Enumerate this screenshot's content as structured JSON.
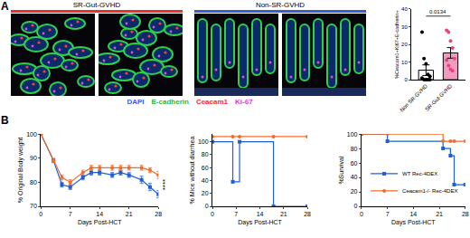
{
  "figure": {
    "panel_labels": [
      "A",
      "B"
    ],
    "images": [
      {
        "title": "SR-Gut-GVHD",
        "color": "#e8312f"
      },
      {
        "title": "Non-SR-GVHD",
        "color": "#3a5fcd"
      }
    ],
    "stain_legend": [
      {
        "text": "DAPI",
        "color": "#3b5bff"
      },
      {
        "text": "E-cadherin",
        "color": "#1fb83a"
      },
      {
        "text": "Ceacam1",
        "color": "#ff2a2a"
      },
      {
        "text": "Ki-67",
        "color": "#d83ad8"
      }
    ]
  },
  "chart_data": [
    {
      "type": "bar",
      "categories": [
        "Non SR-GVHD",
        "SR-Gut-GVHD"
      ],
      "values": [
        5.4,
        15.2
      ],
      "errors": [
        3,
        3
      ],
      "colors": [
        "#ffffff",
        "#f49ac1"
      ],
      "points": [
        [
          27,
          12,
          9,
          3,
          2,
          1,
          0,
          0,
          0,
          0
        ],
        [
          28,
          27,
          22,
          18,
          12,
          11,
          8,
          6,
          5
        ]
      ],
      "point_colors": [
        "#000000",
        "#e8457f"
      ],
      "y_label": "%Ceacam1+Ki67+E-cadherin+",
      "ylim": [
        0,
        40
      ],
      "yticks": [
        0,
        10,
        20,
        30,
        40
      ],
      "annotations": [
        {
          "text": "0.0134",
          "x": 0.5,
          "y": 36
        }
      ]
    },
    {
      "type": "line",
      "x_label": "Days Post-HCT",
      "y_label": "% Original Body weight",
      "xlim": [
        0,
        28
      ],
      "xticks": [
        0,
        7,
        14,
        21,
        28
      ],
      "ylim": [
        70,
        100
      ],
      "yticks": [
        70,
        80,
        90,
        100
      ],
      "x": [
        0,
        3,
        5,
        7,
        10,
        12,
        14,
        17,
        19,
        21,
        24,
        26,
        28
      ],
      "series": [
        {
          "color": "#1f5fd6",
          "marker": "square",
          "values": [
            100,
            89,
            79,
            78,
            82,
            84,
            84,
            83,
            84,
            83,
            81,
            78,
            75
          ],
          "errors": [
            0,
            0.8,
            1,
            1,
            1,
            1,
            1,
            1,
            1,
            1,
            1.5,
            1.5,
            1.5
          ]
        },
        {
          "color": "#f26b2a",
          "marker": "circle",
          "values": [
            100,
            89,
            82,
            80,
            84,
            86,
            86,
            86,
            86,
            86,
            86,
            85,
            83
          ],
          "errors": [
            0,
            0.8,
            1,
            1,
            1,
            1,
            1,
            1,
            1,
            1,
            1,
            1,
            1.5
          ]
        }
      ],
      "annotations": [
        {
          "text": "****",
          "x": 28,
          "y": 79
        }
      ]
    },
    {
      "type": "step",
      "x_label": "Days Post-HCT",
      "y_label": "% Mice without diarrhea",
      "xlim": [
        0,
        28
      ],
      "xticks": [
        0,
        7,
        14,
        21,
        28
      ],
      "ylim": [
        0,
        112
      ],
      "yticks": [
        0,
        20,
        40,
        60,
        80,
        100
      ],
      "x": [
        0,
        6,
        8,
        18,
        28
      ],
      "series": [
        {
          "color": "#1f5fd6",
          "marker": "square",
          "values": [
            100,
            38,
            100,
            0,
            0
          ]
        },
        {
          "color": "#f26b2a",
          "marker": "circle",
          "values": [
            108,
            108,
            108,
            108,
            108
          ]
        }
      ]
    },
    {
      "type": "step",
      "x_label": "Days Post-HCT",
      "y_label": "%Survival",
      "xlim": [
        0,
        28
      ],
      "xticks": [
        0,
        7,
        14,
        21,
        28
      ],
      "ylim": [
        0,
        100
      ],
      "yticks": [
        0,
        20,
        40,
        60,
        80,
        100
      ],
      "x": [
        0,
        7,
        22,
        24,
        25,
        28
      ],
      "legend": "lower left",
      "series": [
        {
          "name": "WT Rec-4DEX",
          "color": "#1f5fd6",
          "marker": "square",
          "values": [
            100,
            90,
            80,
            70,
            30,
            30
          ]
        },
        {
          "name": "Ceacam1-/- Rec-4DEX",
          "color": "#f26b2a",
          "marker": "circle",
          "values": [
            100,
            100,
            90,
            90,
            90,
            90
          ]
        }
      ],
      "annotations": [
        {
          "text": "*",
          "x": 28,
          "y": 60
        }
      ]
    }
  ]
}
